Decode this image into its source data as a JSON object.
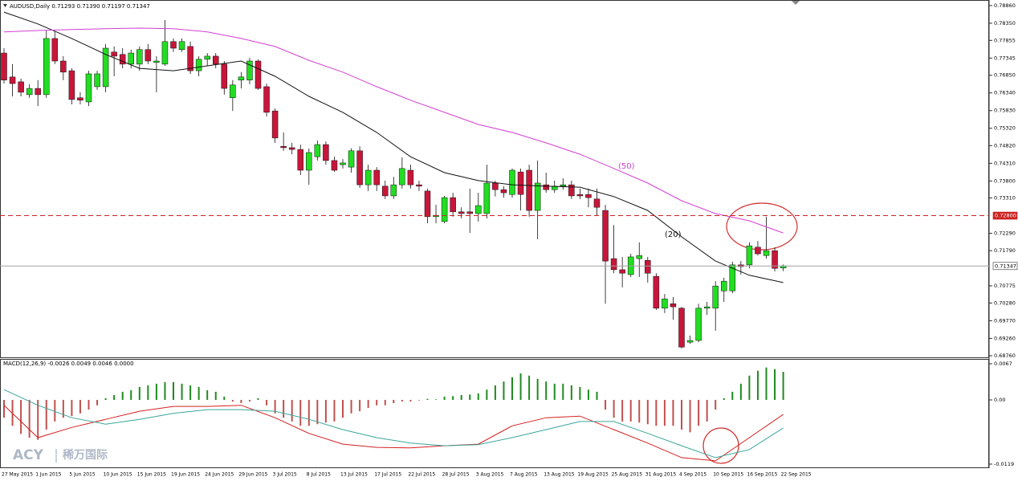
{
  "chart_data": [
    {
      "type": "candlestick",
      "title": "AUDUSD,Daily  0.71293 0.71390 0.71197 0.71347",
      "up_color": "#22dd22",
      "down_color": "#c8163a",
      "categories": [
        "27 May 2015",
        null,
        null,
        null,
        "1 Jun 2015",
        null,
        null,
        null,
        "5 Jun 2015",
        null,
        null,
        null,
        "10 Jun 2015",
        null,
        null,
        null,
        "15 Jun 2015",
        null,
        null,
        null,
        "19 Jun 2015",
        null,
        null,
        null,
        "24 Jun 2015",
        null,
        null,
        null,
        "29 Jun 2015",
        null,
        null,
        null,
        "3 Jul 2015",
        null,
        null,
        null,
        "8 Jul 2015",
        null,
        null,
        null,
        "13 Jul 2015",
        null,
        null,
        null,
        "17 Jul 2015",
        null,
        null,
        null,
        "22 Jul 2015",
        null,
        null,
        null,
        "28 Jul 2015",
        null,
        null,
        null,
        "3 Aug 2015",
        null,
        null,
        null,
        "7 Aug 2015",
        null,
        null,
        null,
        "13 Aug 2015",
        null,
        null,
        null,
        "19 Aug 2015",
        null,
        null,
        null,
        "25 Aug 2015",
        null,
        null,
        null,
        "31 Aug 2015",
        null,
        null,
        null,
        "4 Sep 2015",
        null,
        null,
        null,
        "10 Sep 2015",
        null,
        null,
        null,
        "16 Sep 2015",
        null,
        null,
        null,
        "22 Sep 2015"
      ],
      "open": [
        0.7749,
        0.768,
        0.7666,
        0.7629,
        0.7647,
        0.7629,
        0.7791,
        0.7726,
        0.7698,
        0.762,
        0.7608,
        0.7652,
        0.7652,
        0.7752,
        0.7745,
        0.7717,
        0.7717,
        0.7759,
        0.7722,
        0.7717,
        0.7782,
        0.7759,
        0.7768,
        0.7698,
        0.7731,
        0.774,
        0.7717,
        0.762,
        0.7671,
        0.7671,
        0.7726,
        0.7652,
        0.7582,
        0.748,
        0.7476,
        0.7471,
        0.7411,
        0.745,
        0.7485,
        0.7439,
        0.7427,
        0.742,
        0.7467,
        0.7369,
        0.7411,
        0.7365,
        0.7337,
        0.7369,
        0.7411,
        0.7369,
        0.7351,
        0.7277,
        0.7263,
        0.7332,
        0.7291,
        0.7291,
        0.7286,
        0.7286,
        0.7374,
        0.7355,
        0.7341,
        0.7406,
        0.7411,
        0.7295,
        0.7369,
        0.7355,
        0.7365,
        0.7369,
        0.7341,
        0.7341,
        0.7328,
        0.7295,
        0.7156,
        0.7124,
        0.711,
        0.7156,
        0.7151,
        0.7105,
        0.7013,
        0.7026,
        0.7013,
        0.6915,
        0.692,
        0.7013,
        0.7013,
        0.7063,
        0.7063,
        0.7138,
        0.7138,
        0.7189,
        0.7165,
        0.7179,
        0.7129
      ],
      "high": [
        0.7763,
        0.7717,
        0.7675,
        0.7659,
        0.7671,
        0.7814,
        0.781,
        0.774,
        0.7705,
        0.7636,
        0.7698,
        0.7698,
        0.7775,
        0.7768,
        0.7763,
        0.7759,
        0.7768,
        0.7775,
        0.774,
        0.7844,
        0.7791,
        0.7791,
        0.7782,
        0.774,
        0.7749,
        0.7749,
        0.7726,
        0.7671,
        0.7694,
        0.7735,
        0.7731,
        0.7661,
        0.7589,
        0.752,
        0.749,
        0.7485,
        0.7474,
        0.7497,
        0.7494,
        0.745,
        0.7443,
        0.7474,
        0.748,
        0.7427,
        0.742,
        0.7381,
        0.7392,
        0.7448,
        0.7427,
        0.7381,
        0.7358,
        0.7311,
        0.7337,
        0.7346,
        0.7304,
        0.7358,
        0.7346,
        0.7427,
        0.7381,
        0.7365,
        0.7416,
        0.7416,
        0.7427,
        0.7439,
        0.7404,
        0.7381,
        0.7388,
        0.7381,
        0.7358,
        0.7358,
        0.7358,
        0.7311,
        0.7253,
        0.7161,
        0.717,
        0.7203,
        0.7161,
        0.7114,
        0.7054,
        0.7045,
        0.7017,
        0.6934,
        0.7026,
        0.7031,
        0.7091,
        0.7101,
        0.7147,
        0.7149,
        0.7203,
        0.7207,
        0.7277,
        0.7189,
        0.7139
      ],
      "low": [
        0.7661,
        0.7624,
        0.7624,
        0.762,
        0.7596,
        0.762,
        0.7717,
        0.7671,
        0.7601,
        0.7601,
        0.7596,
        0.7643,
        0.7636,
        0.7682,
        0.7705,
        0.7705,
        0.7698,
        0.7717,
        0.7636,
        0.7712,
        0.7752,
        0.7752,
        0.7689,
        0.7682,
        0.7712,
        0.7705,
        0.7629,
        0.7582,
        0.7647,
        0.7659,
        0.7643,
        0.7566,
        0.749,
        0.7467,
        0.7457,
        0.7397,
        0.7369,
        0.7439,
        0.7427,
        0.7406,
        0.7416,
        0.7404,
        0.736,
        0.7351,
        0.7351,
        0.7328,
        0.7328,
        0.7358,
        0.7358,
        0.7351,
        0.7258,
        0.7258,
        0.7258,
        0.7277,
        0.7272,
        0.723,
        0.7263,
        0.7272,
        0.7335,
        0.7332,
        0.7332,
        0.7295,
        0.7277,
        0.7212,
        0.7346,
        0.7346,
        0.7355,
        0.7328,
        0.7328,
        0.7304,
        0.7281,
        0.7026,
        0.7114,
        0.7073,
        0.7103,
        0.7103,
        0.7087,
        0.7008,
        0.6999,
        0.698,
        0.6897,
        0.691,
        0.6915,
        0.6994,
        0.6948,
        0.7031,
        0.7056,
        0.711,
        0.7128,
        0.7165,
        0.7156,
        0.7119,
        0.712
      ],
      "close": [
        0.7671,
        0.7661,
        0.7636,
        0.7647,
        0.7629,
        0.7791,
        0.7726,
        0.7694,
        0.7615,
        0.7613,
        0.7689,
        0.7689,
        0.7763,
        0.774,
        0.7717,
        0.7749,
        0.7759,
        0.7726,
        0.7726,
        0.7782,
        0.7763,
        0.7782,
        0.7698,
        0.7731,
        0.774,
        0.7717,
        0.7647,
        0.7657,
        0.768,
        0.7726,
        0.7647,
        0.7578,
        0.7504,
        0.7476,
        0.7471,
        0.7411,
        0.7462,
        0.7485,
        0.7439,
        0.7411,
        0.7432,
        0.7467,
        0.7369,
        0.7411,
        0.7369,
        0.7337,
        0.7369,
        0.7416,
        0.7369,
        0.7365,
        0.7277,
        0.7281,
        0.7332,
        0.7291,
        0.7286,
        0.7286,
        0.7309,
        0.7374,
        0.7355,
        0.7346,
        0.7411,
        0.7341,
        0.7295,
        0.7374,
        0.7355,
        0.7365,
        0.7369,
        0.7337,
        0.7337,
        0.7332,
        0.7304,
        0.7149,
        0.7124,
        0.7114,
        0.7161,
        0.7165,
        0.7114,
        0.7013,
        0.704,
        0.7017,
        0.6901,
        0.692,
        0.7013,
        0.7017,
        0.7077,
        0.7091,
        0.7138,
        0.7133,
        0.7193,
        0.717,
        0.7179,
        0.7128,
        0.7135
      ],
      "overlays": [
        {
          "label": "(20)",
          "color": "#111111",
          "x": [
            "27 May 2015",
            "1 Jun 2015",
            "5 Jun 2015",
            "10 Jun 2015",
            "15 Jun 2015",
            "19 Jun 2015",
            "24 Jun 2015",
            "29 Jun 2015",
            "3 Jul 2015",
            "8 Jul 2015",
            "13 Jul 2015",
            "17 Jul 2015",
            "22 Jul 2015",
            "28 Jul 2015",
            "3 Aug 2015",
            "7 Aug 2015",
            "13 Aug 2015",
            "19 Aug 2015",
            "25 Aug 2015",
            "31 Aug 2015",
            "4 Sep 2015",
            "10 Sep 2015",
            "16 Sep 2015",
            "22 Sep 2015"
          ],
          "values": [
            0.7867,
            0.7833,
            0.7791,
            0.7745,
            0.7705,
            0.7698,
            0.7712,
            0.7726,
            0.7682,
            0.7624,
            0.7578,
            0.752,
            0.745,
            0.7404,
            0.7381,
            0.7369,
            0.7365,
            0.7362,
            0.7335,
            0.7295,
            0.7219,
            0.7149,
            0.7108,
            0.7087
          ]
        },
        {
          "label": "(50)",
          "color": "#d23fd2",
          "x": [
            "27 May 2015",
            "1 Jun 2015",
            "5 Jun 2015",
            "10 Jun 2015",
            "15 Jun 2015",
            "19 Jun 2015",
            "24 Jun 2015",
            "29 Jun 2015",
            "3 Jul 2015",
            "8 Jul 2015",
            "13 Jul 2015",
            "17 Jul 2015",
            "22 Jul 2015",
            "28 Jul 2015",
            "3 Aug 2015",
            "7 Aug 2015",
            "13 Aug 2015",
            "19 Aug 2015",
            "25 Aug 2015",
            "31 Aug 2015",
            "4 Sep 2015",
            "10 Sep 2015",
            "16 Sep 2015",
            "22 Sep 2015"
          ],
          "values": [
            0.781,
            0.7814,
            0.7817,
            0.7819,
            0.7821,
            0.7819,
            0.781,
            0.7791,
            0.7768,
            0.7728,
            0.7694,
            0.7652,
            0.7613,
            0.7578,
            0.7543,
            0.752,
            0.749,
            0.7457,
            0.7416,
            0.7374,
            0.7323,
            0.7286,
            0.7265,
            0.723
          ]
        }
      ],
      "hlines": [
        {
          "value": 0.728,
          "label": "0.72800",
          "color": "#cc2222",
          "dashed": true
        },
        {
          "value": 0.71347,
          "label": "0.71347",
          "color": "#a0a0a0",
          "dashed": false
        }
      ],
      "ylim": [
        0.6869,
        0.7902
      ],
      "yticks": [
        {
          "value": 0.7886,
          "label": "0.78860"
        },
        {
          "value": 0.7835,
          "label": "0.78350"
        },
        0.77855,
        0.77345,
        {
          "value": 0.7685,
          "label": "0.76850"
        },
        {
          "value": 0.7634,
          "label": "0.76340"
        },
        {
          "value": 0.7583,
          "label": "0.75830"
        },
        {
          "value": 0.7532,
          "label": "0.75320"
        },
        {
          "value": 0.7482,
          "label": "0.74820"
        },
        {
          "value": 0.7431,
          "label": "0.74310"
        },
        {
          "value": 0.738,
          "label": "0.73800"
        },
        {
          "value": 0.7331,
          "label": "0.73310"
        },
        {
          "value": 0.7229,
          "label": "0.72290"
        },
        {
          "value": 0.7179,
          "label": "0.71790"
        },
        0.70775,
        {
          "value": 0.7028,
          "label": "0.70280"
        },
        {
          "value": 0.6977,
          "label": "0.69770"
        },
        {
          "value": 0.6926,
          "label": "0.69260"
        },
        {
          "value": 0.6876,
          "label": "0.68760"
        }
      ]
    },
    {
      "type": "macd",
      "title": "MACD(12,26,9) -0.0026 0.0049 0.0046 0.0000",
      "up_color": "#1f8a1f",
      "down_color": "#c0504d",
      "values": [
        -0.0033,
        -0.0048,
        -0.0063,
        -0.007,
        -0.0074,
        -0.0055,
        -0.004,
        -0.0033,
        -0.003,
        -0.0025,
        -0.0018,
        -0.001,
        0.0003,
        0.0009,
        0.0015,
        0.0018,
        0.0024,
        0.0027,
        0.003,
        0.0033,
        0.0033,
        0.003,
        0.0027,
        0.0024,
        0.0018,
        0.0015,
        0.0006,
        -0.0003,
        -0.0006,
        -0.0003,
        0.0003,
        -0.001,
        -0.0025,
        -0.0033,
        -0.004,
        -0.0048,
        -0.0048,
        -0.0045,
        -0.0042,
        -0.004,
        -0.0033,
        -0.0025,
        -0.0021,
        -0.0015,
        -0.001,
        -0.001,
        -0.0006,
        -0.0003,
        -0.0003,
        -0.0001,
        0.0002,
        0.0001,
        0.0006,
        0.0007,
        0.0009,
        0.001,
        0.0012,
        0.0019,
        0.0027,
        0.0034,
        0.0042,
        0.0049,
        0.0045,
        0.0039,
        0.0034,
        0.003,
        0.003,
        0.0027,
        0.0024,
        0.0019,
        0.0015,
        -0.0018,
        -0.0033,
        -0.004,
        -0.004,
        -0.0042,
        -0.0045,
        -0.0048,
        -0.0048,
        -0.0048,
        -0.0055,
        -0.006,
        -0.0048,
        -0.004,
        -0.0018,
        0.0003,
        0.0015,
        0.003,
        0.0045,
        0.0054,
        0.006,
        0.0057,
        0.0052
      ],
      "lines": [
        {
          "color": "#d42020",
          "x": [
            "27 May 2015",
            "1 Jun 2015",
            "5 Jun 2015",
            "10 Jun 2015",
            "15 Jun 2015",
            "19 Jun 2015",
            "24 Jun 2015",
            "29 Jun 2015",
            "3 Jul 2015",
            "8 Jul 2015",
            "13 Jul 2015",
            "17 Jul 2015",
            "22 Jul 2015",
            "28 Jul 2015",
            "3 Aug 2015",
            "7 Aug 2015",
            "13 Aug 2015",
            "19 Aug 2015",
            "25 Aug 2015",
            "31 Aug 2015",
            "4 Sep 2015",
            "10 Sep 2015",
            "16 Sep 2015",
            "22 Sep 2015"
          ],
          "values": [
            -0.001,
            -0.007,
            -0.0051,
            -0.0036,
            -0.0021,
            -0.0012,
            -0.0012,
            -0.001,
            -0.0033,
            -0.0062,
            -0.0082,
            -0.0088,
            -0.0089,
            -0.0085,
            -0.0082,
            -0.0048,
            -0.0033,
            -0.003,
            -0.0055,
            -0.008,
            -0.0107,
            -0.0113,
            -0.007,
            -0.0027
          ]
        },
        {
          "color": "#3aa69a",
          "x": [
            "27 May 2015",
            "1 Jun 2015",
            "5 Jun 2015",
            "10 Jun 2015",
            "15 Jun 2015",
            "19 Jun 2015",
            "24 Jun 2015",
            "29 Jun 2015",
            "3 Jul 2015",
            "8 Jul 2015",
            "13 Jul 2015",
            "17 Jul 2015",
            "22 Jul 2015",
            "28 Jul 2015",
            "3 Aug 2015",
            "7 Aug 2015",
            "13 Aug 2015",
            "19 Aug 2015",
            "25 Aug 2015",
            "31 Aug 2015",
            "4 Sep 2015",
            "10 Sep 2015",
            "16 Sep 2015",
            "22 Sep 2015"
          ],
          "values": [
            0.0019,
            -0.001,
            -0.0033,
            -0.0045,
            -0.0036,
            -0.0025,
            -0.0018,
            -0.0018,
            -0.0021,
            -0.0036,
            -0.0055,
            -0.007,
            -0.008,
            -0.0085,
            -0.0083,
            -0.007,
            -0.0055,
            -0.004,
            -0.004,
            -0.0062,
            -0.0085,
            -0.0107,
            -0.0092,
            -0.0052
          ]
        }
      ],
      "ylim": [
        -0.01265,
        0.00759
      ],
      "yticks": [
        0.0067,
        {
          "value": 0,
          "label": "0.00"
        },
        -0.0119
      ]
    }
  ],
  "watermark": {
    "brand": "ACY",
    "name": "稀万国际"
  }
}
